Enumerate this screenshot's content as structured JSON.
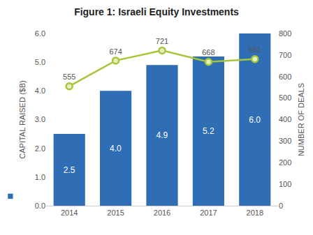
{
  "chart_data": {
    "type": "bar",
    "title": "Figure 1: Israeli Equity Investments",
    "categories": [
      "2014",
      "2015",
      "2016",
      "2017",
      "2018"
    ],
    "series": [
      {
        "name": "CAPITAL RAISED ($B)",
        "type": "bar",
        "color": "#2f6db5",
        "values": [
          2.5,
          4.0,
          4.9,
          5.2,
          6.0
        ],
        "value_labels": [
          "2.5",
          "4.0",
          "4.9",
          "5.2",
          "6.0"
        ]
      },
      {
        "name": "NUMBER OF DEALS",
        "type": "line",
        "axis": "y2",
        "color": "#a6c63a",
        "marker": "circle",
        "values": [
          555,
          674,
          721,
          668,
          681
        ]
      }
    ],
    "ylim": [
      0,
      6
    ],
    "yticks": [
      {
        "value": 0,
        "label": "0.0"
      },
      {
        "value": 1,
        "label": "1.0"
      },
      {
        "value": 2,
        "label": "2.0"
      },
      {
        "value": 3,
        "label": "3.0"
      },
      {
        "value": 4,
        "label": "4.0"
      },
      {
        "value": 5,
        "label": "5.0"
      },
      {
        "value": 6,
        "label": "6.0"
      }
    ],
    "y2lim": [
      0,
      800
    ],
    "y2ticks": [
      0,
      100,
      200,
      300,
      400,
      500,
      600,
      700,
      800
    ],
    "data_labels": true,
    "grid": false
  }
}
